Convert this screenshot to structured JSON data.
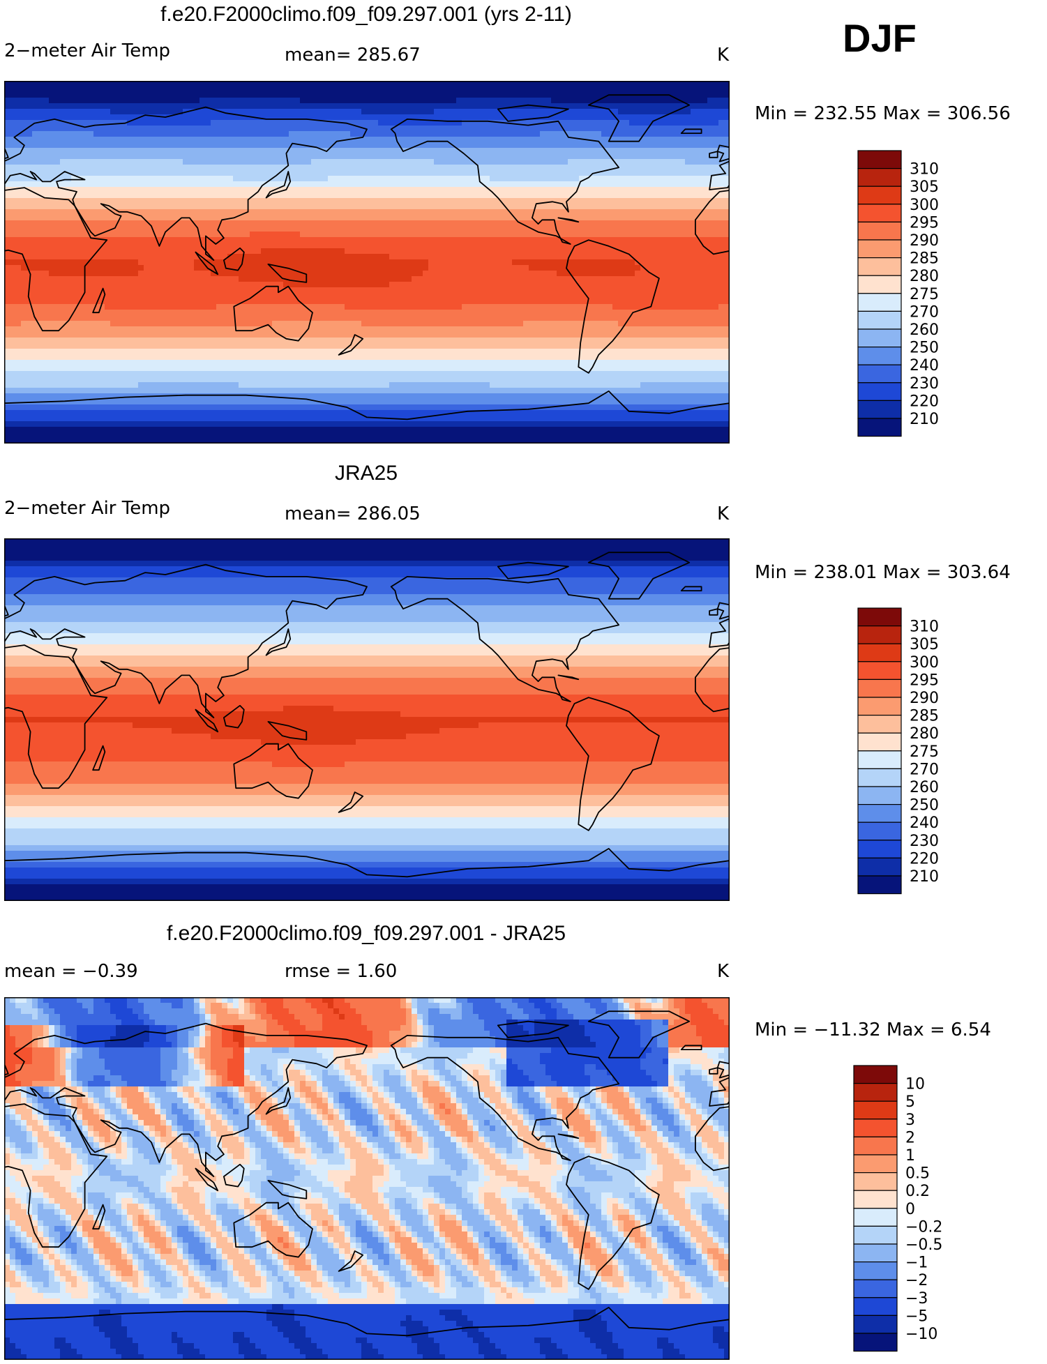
{
  "season": "DJF",
  "colors": {
    "warm": [
      "#ffe2cf",
      "#fdbf9c",
      "#fb9b70",
      "#f8764d",
      "#f4532f",
      "#de3a16",
      "#b8240e",
      "#7d0a09"
    ],
    "cool": [
      "#d9ecfc",
      "#b4d4f8",
      "#8cb5f2",
      "#5e8eea",
      "#3a66e0",
      "#1e48d6",
      "#0e2ea8",
      "#06147a"
    ],
    "land_outline": "#000000"
  },
  "panels": [
    {
      "title": "f.e20.F2000climo.f09_f09.297.001 (yrs 2-11)",
      "left": "2−meter Air Temp",
      "center": "mean=  285.67",
      "units": "K",
      "minmax": "Min  =  232.55  Max  =  306.56"
    },
    {
      "title": "JRA25",
      "left": "2−meter Air Temp",
      "center": "mean=  286.05",
      "units": "K",
      "minmax": "Min  =  238.01  Max  =  303.64"
    },
    {
      "title": "f.e20.F2000climo.f09_f09.297.001 - JRA25",
      "left": "mean  =    −0.39",
      "center": "rmse  =     1.60",
      "units": "K",
      "minmax": "Min  =  −11.32  Max  =      6.54"
    }
  ],
  "chart_data": [
    {
      "type": "heatmap",
      "title": "f.e20.F2000climo.f09_f09.297.001 (yrs 2-11)",
      "variable": "2-meter Air Temp",
      "units": "K",
      "mean": 285.67,
      "min": 232.55,
      "max": 306.56,
      "colorbar_levels": [
        "310",
        "305",
        "300",
        "295",
        "290",
        "285",
        "280",
        "275",
        "270",
        "260",
        "250",
        "240",
        "230",
        "220",
        "210"
      ]
    },
    {
      "type": "heatmap",
      "title": "JRA25",
      "variable": "2-meter Air Temp",
      "units": "K",
      "mean": 286.05,
      "min": 238.01,
      "max": 303.64,
      "colorbar_levels": [
        "310",
        "305",
        "300",
        "295",
        "290",
        "285",
        "280",
        "275",
        "270",
        "260",
        "250",
        "240",
        "230",
        "220",
        "210"
      ]
    },
    {
      "type": "heatmap",
      "title": "f.e20.F2000climo.f09_f09.297.001 - JRA25",
      "units": "K",
      "mean": -0.39,
      "rmse": 1.6,
      "min": -11.32,
      "max": 6.54,
      "colorbar_levels": [
        "10",
        "5",
        "3",
        "2",
        "1",
        "0.5",
        "0.2",
        "0",
        "−0.2",
        "−0.5",
        "−1",
        "−2",
        "−3",
        "−5",
        "−10"
      ]
    }
  ]
}
